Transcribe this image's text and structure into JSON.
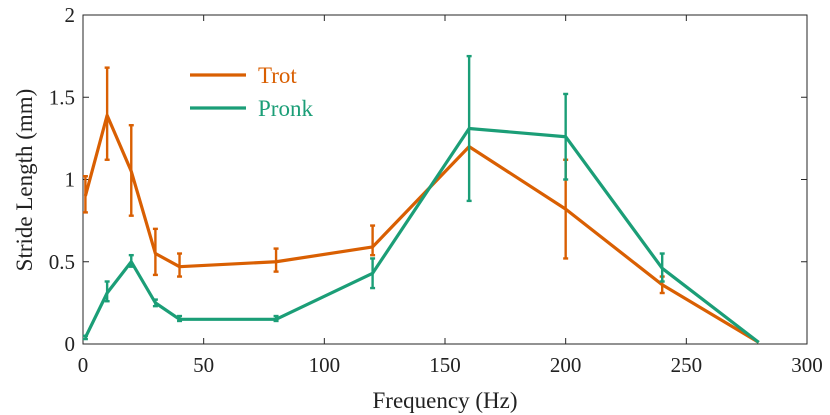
{
  "chart_data": {
    "type": "line",
    "title": "",
    "xlabel": "Frequency (Hz)",
    "ylabel": "Stride Length (mm)",
    "xlim": [
      0,
      300
    ],
    "ylim": [
      0,
      2
    ],
    "xticks": [
      0,
      50,
      100,
      150,
      200,
      250,
      300
    ],
    "yticks": [
      0,
      0.5,
      1,
      1.5,
      2
    ],
    "xtick_labels": [
      "0",
      "50",
      "100",
      "150",
      "200",
      "250",
      "300"
    ],
    "ytick_labels": [
      "0",
      "0.5",
      "1",
      "1.5",
      "2"
    ],
    "legend_position": "top-left",
    "grid": false,
    "series": [
      {
        "name": "Trot",
        "color": "#d95f02",
        "x": [
          1,
          10,
          20,
          30,
          40,
          80,
          120,
          160,
          200,
          240,
          280
        ],
        "y": [
          0.9,
          1.39,
          1.05,
          0.55,
          0.47,
          0.5,
          0.59,
          1.2,
          0.82,
          0.36,
          0.01
        ],
        "err_low": [
          0.8,
          1.12,
          0.78,
          0.42,
          0.41,
          0.44,
          0.54,
          1.2,
          0.52,
          0.31,
          0.01
        ],
        "err_high": [
          1.02,
          1.68,
          1.33,
          0.7,
          0.55,
          0.58,
          0.72,
          1.2,
          1.12,
          0.41,
          0.01
        ]
      },
      {
        "name": "Pronk",
        "color": "#1b9e77",
        "x": [
          1,
          10,
          20,
          30,
          40,
          80,
          120,
          160,
          200,
          240,
          280
        ],
        "y": [
          0.04,
          0.31,
          0.5,
          0.25,
          0.15,
          0.15,
          0.43,
          1.31,
          1.26,
          0.46,
          0.01
        ],
        "err_low": [
          0.03,
          0.26,
          0.47,
          0.23,
          0.14,
          0.14,
          0.34,
          0.87,
          1.0,
          0.38,
          0.01
        ],
        "err_high": [
          0.05,
          0.38,
          0.54,
          0.27,
          0.17,
          0.17,
          0.52,
          1.75,
          1.52,
          0.55,
          0.01
        ]
      }
    ]
  }
}
